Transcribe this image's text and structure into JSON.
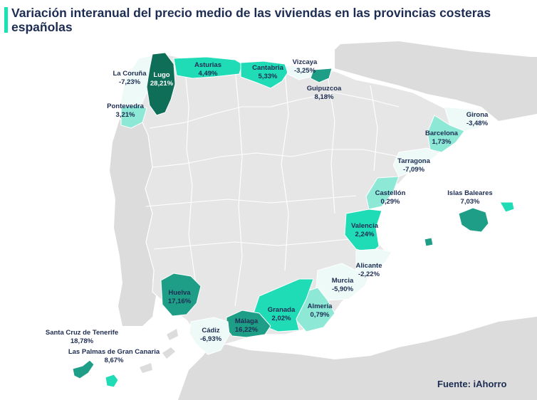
{
  "title": "Variación interanual del precio medio de las viviendas en las provincias costeras españolas",
  "source": "Fuente: iAhorro",
  "colors": {
    "sea": "#ffffff",
    "land": "#dcdcdc",
    "spain": "#e6e6e6",
    "border": "#ffffff",
    "negative": "#edfaf7",
    "low": "#8de8d6",
    "mid": "#1fdcb6",
    "high": "#1e9e87",
    "top": "#0f6e57",
    "text": "#1d2c52",
    "accent": "#19e3b4"
  },
  "provinces": [
    {
      "name": "La Coruña",
      "value": "-7,23%"
    },
    {
      "name": "Lugo",
      "value": "28,21%"
    },
    {
      "name": "Asturias",
      "value": "4,49%"
    },
    {
      "name": "Cantabria",
      "value": "5,33%"
    },
    {
      "name": "Vizcaya",
      "value": "-3,25%"
    },
    {
      "name": "Guipuzcoa",
      "value": "8,18%"
    },
    {
      "name": "Pontevedra",
      "value": "3,21%"
    },
    {
      "name": "Girona",
      "value": "-3,48%"
    },
    {
      "name": "Barcelona",
      "value": "1,73%"
    },
    {
      "name": "Tarragona",
      "value": "-7,09%"
    },
    {
      "name": "Castellón",
      "value": "0,29%"
    },
    {
      "name": "Islas Baleares",
      "value": "7,03%"
    },
    {
      "name": "Valencia",
      "value": "2,24%"
    },
    {
      "name": "Alicante",
      "value": "-2,22%"
    },
    {
      "name": "Murcia",
      "value": "-5,90%"
    },
    {
      "name": "Almería",
      "value": "0,79%"
    },
    {
      "name": "Granada",
      "value": "2,02%"
    },
    {
      "name": "Málaga",
      "value": "16,22%"
    },
    {
      "name": "Cádiz",
      "value": "-6,93%"
    },
    {
      "name": "Huelva",
      "value": "17,16%"
    },
    {
      "name": "Santa Cruz de Tenerife",
      "value": "18,78%"
    },
    {
      "name": "Las Palmas de Gran Canaria",
      "value": "8,67%"
    }
  ]
}
